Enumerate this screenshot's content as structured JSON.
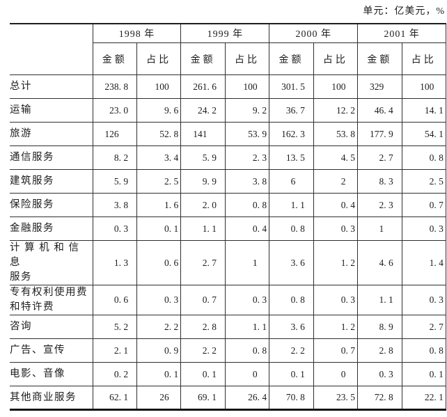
{
  "unit_label": "单元：亿美元，%",
  "table": {
    "corner_label": "",
    "years": [
      "1998 年",
      "1999 年",
      "2000 年",
      "2001 年"
    ],
    "sub_headers": [
      "金额",
      "占比"
    ],
    "rows": [
      {
        "label": "总计",
        "values": [
          "238.8",
          "100",
          "261.6",
          "100",
          "301.5",
          "100",
          "329",
          "100"
        ]
      },
      {
        "label": "运输",
        "values": [
          "23.0",
          "9.6",
          "24.2",
          "9.2",
          "36.7",
          "12.2",
          "46.4",
          "14.1"
        ]
      },
      {
        "label": "旅游",
        "values": [
          "126",
          "52.8",
          "141",
          "53.9",
          "162.3",
          "53.8",
          "177.9",
          "54.1"
        ]
      },
      {
        "label": "通信服务",
        "values": [
          "8.2",
          "3.4",
          "5.9",
          "2.3",
          "13.5",
          "4.5",
          "2.7",
          "0.8"
        ]
      },
      {
        "label": "建筑服务",
        "values": [
          "5.9",
          "2.5",
          "9.9",
          "3.8",
          "6",
          "2",
          "8.3",
          "2.5"
        ]
      },
      {
        "label": "保险服务",
        "values": [
          "3.8",
          "1.6",
          "2.0",
          "0.8",
          "1.1",
          "0.4",
          "2.3",
          "0.7"
        ]
      },
      {
        "label": "金融服务",
        "values": [
          "0.3",
          "0.1",
          "1.1",
          "0.4",
          "0.8",
          "0.3",
          "1",
          "0.3"
        ]
      },
      {
        "label": "计 算 机 和 信 息\n服务",
        "values": [
          "1.3",
          "0.6",
          "2.7",
          "1",
          "3.6",
          "1.2",
          "4.6",
          "1.4"
        ]
      },
      {
        "label": "专有权利使用费\n和特许费",
        "values": [
          "0.6",
          "0.3",
          "0.7",
          "0.3",
          "0.8",
          "0.3",
          "1.1",
          "0.3"
        ]
      },
      {
        "label": "咨询",
        "values": [
          "5.2",
          "2.2",
          "2.8",
          "1.1",
          "3.6",
          "1.2",
          "8.9",
          "2.7"
        ]
      },
      {
        "label": "广告、宣传",
        "values": [
          "2.1",
          "0.9",
          "2.2",
          "0.8",
          "2.2",
          "0.7",
          "2.8",
          "0.8"
        ]
      },
      {
        "label": "电影、音像",
        "values": [
          "0.2",
          "0.1",
          "0.1",
          "0",
          "0.1",
          "0",
          "0.3",
          "0.1"
        ]
      },
      {
        "label": "其他商业服务",
        "values": [
          "62.1",
          "26",
          "69.1",
          "26.4",
          "70.8",
          "23.5",
          "72.8",
          "22.1"
        ]
      }
    ]
  },
  "colors": {
    "rule_thin": "#2e2e2e",
    "rule_thick": "#111111",
    "text": "#1c1c1c",
    "paper": "#ffffff"
  }
}
